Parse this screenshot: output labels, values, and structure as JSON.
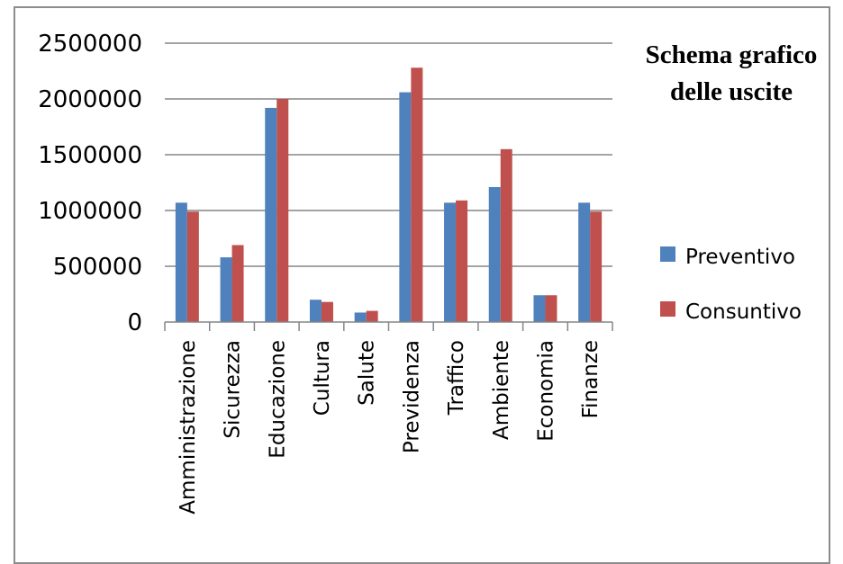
{
  "chart_data": {
    "type": "bar",
    "title_lines": [
      "Schema grafico",
      "delle uscite"
    ],
    "categories": [
      "Amministrazione",
      "Sicurezza",
      "Educazione",
      "Cultura",
      "Salute",
      "Previdenza",
      "Traffico",
      "Ambiente",
      "Economia",
      "Finanze"
    ],
    "series": [
      {
        "name": "Preventivo",
        "color": "#4f81bd",
        "values": [
          1070000,
          580000,
          1920000,
          200000,
          85000,
          2060000,
          1070000,
          1210000,
          240000,
          1070000
        ]
      },
      {
        "name": "Consuntivo",
        "color": "#c0504d",
        "values": [
          990000,
          690000,
          2000000,
          180000,
          100000,
          2280000,
          1090000,
          1550000,
          240000,
          990000
        ]
      }
    ],
    "yticks": [
      "0",
      "500000",
      "1000000",
      "1500000",
      "2000000",
      "2500000"
    ],
    "ylim": [
      0,
      2500000
    ],
    "grid": true,
    "legend_position": "right"
  }
}
